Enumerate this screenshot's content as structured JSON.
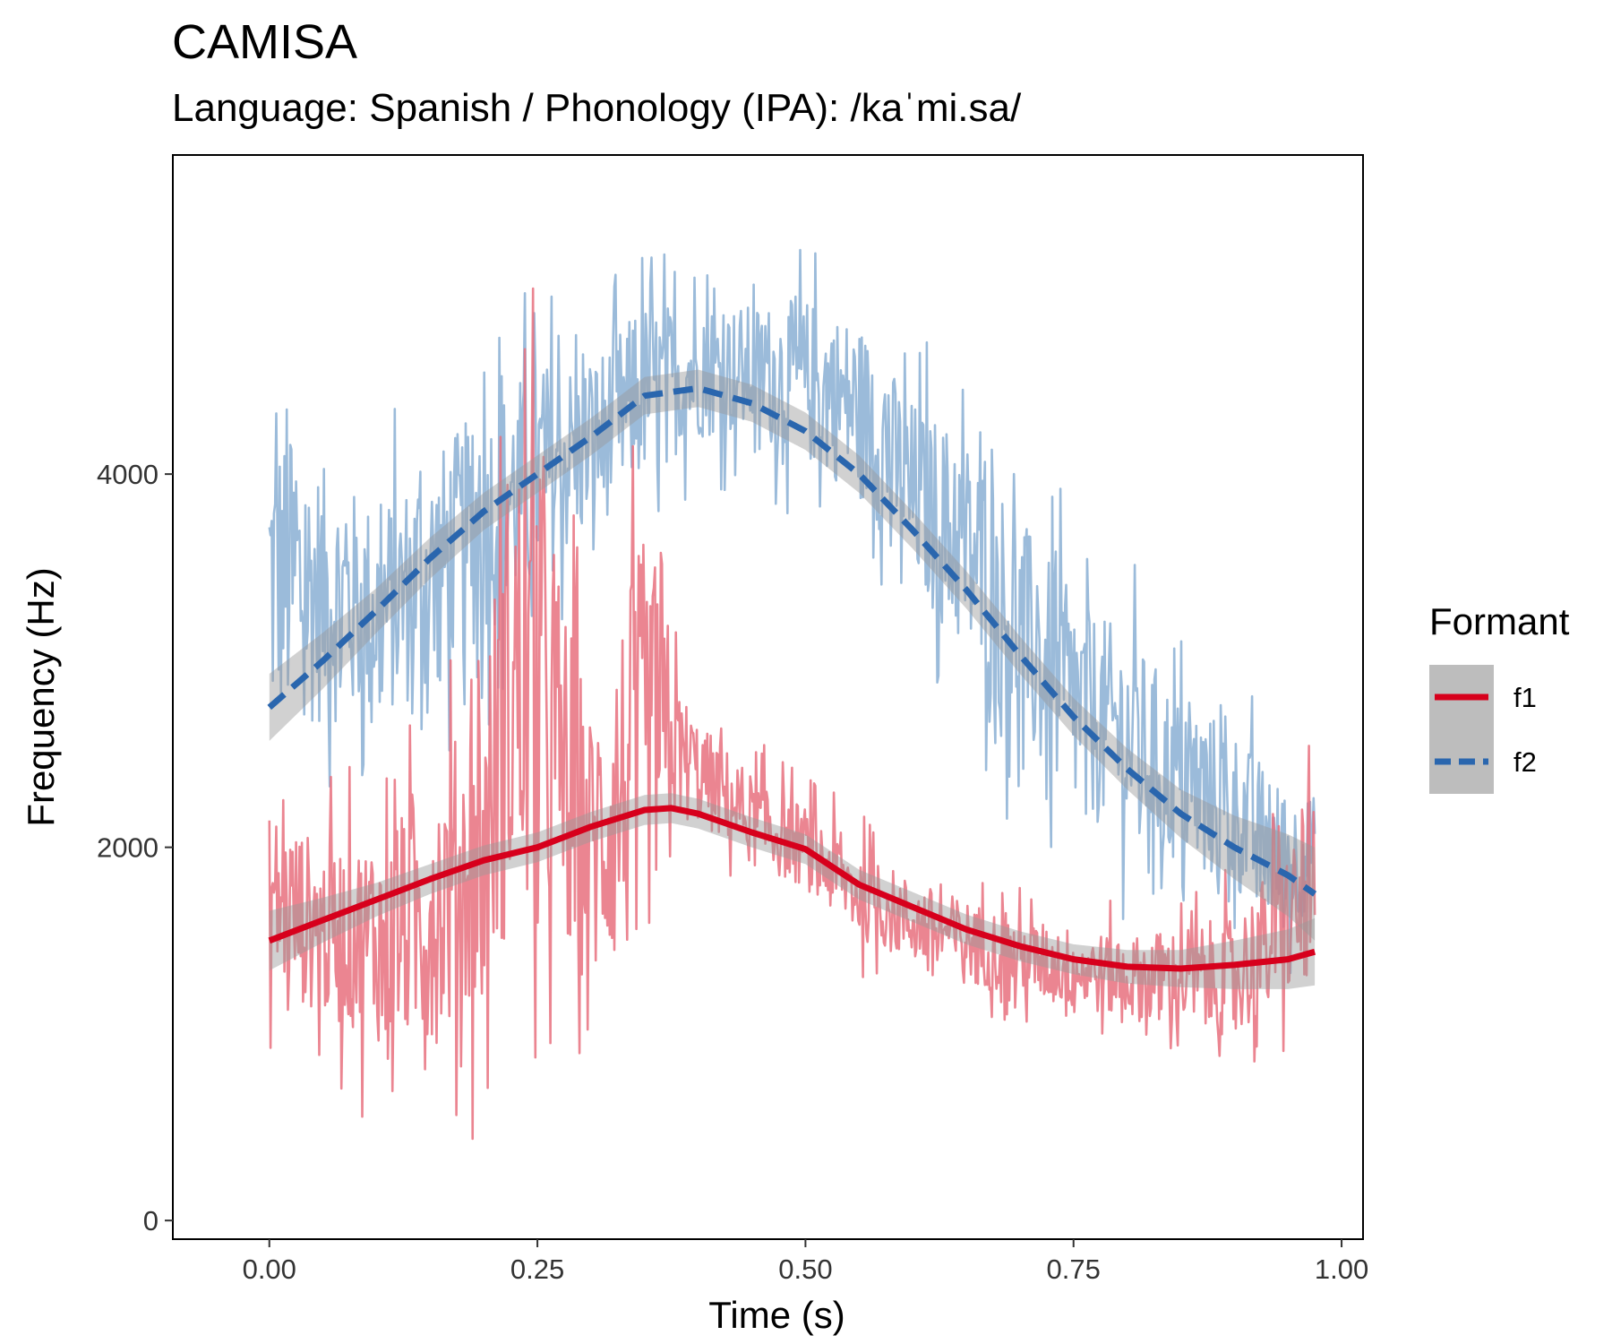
{
  "chart_data": {
    "type": "line",
    "title": "CAMISA",
    "subtitle": "Language: Spanish / Phonology (IPA): /kaˈmi.sa/",
    "xlabel": "Time (s)",
    "ylabel": "Frequency (Hz)",
    "xlim": [
      -0.09,
      1.02
    ],
    "ylim": [
      -100,
      5710
    ],
    "x_ticks": [
      "0.00",
      "0.25",
      "0.50",
      "0.75",
      "1.00"
    ],
    "y_ticks": [
      "0",
      "2000",
      "4000"
    ],
    "grid": false,
    "legend": {
      "title": "Formant",
      "position": "right"
    },
    "series": [
      {
        "name": "f1",
        "raw_color": "#E8707E",
        "smooth_color": "#D7001C",
        "line_style": "solid",
        "raw_envelope": {
          "x": [
            0.0,
            0.05,
            0.1,
            0.15,
            0.2,
            0.225,
            0.25,
            0.3,
            0.35,
            0.375,
            0.4,
            0.45,
            0.5,
            0.55,
            0.6,
            0.7,
            0.8,
            0.9,
            0.975
          ],
          "low": [
            900,
            700,
            500,
            350,
            450,
            500,
            600,
            650,
            500,
            1800,
            1900,
            1700,
            1600,
            1300,
            1200,
            1000,
            900,
            700,
            900
          ],
          "high": [
            2600,
            2400,
            2500,
            2900,
            3600,
            5300,
            5000,
            3300,
            4600,
            3300,
            2900,
            2600,
            2400,
            2200,
            2000,
            1800,
            1700,
            1900,
            2600
          ]
        },
        "smooth": {
          "x": [
            0.0,
            0.05,
            0.1,
            0.15,
            0.2,
            0.25,
            0.3,
            0.35,
            0.375,
            0.4,
            0.45,
            0.5,
            0.55,
            0.6,
            0.65,
            0.7,
            0.75,
            0.8,
            0.85,
            0.9,
            0.95,
            0.975
          ],
          "y": [
            1500,
            1610,
            1720,
            1830,
            1930,
            2000,
            2110,
            2200,
            2210,
            2180,
            2080,
            1990,
            1800,
            1680,
            1560,
            1470,
            1400,
            1360,
            1350,
            1370,
            1400,
            1440
          ],
          "band": [
            160,
            120,
            90,
            80,
            80,
            80,
            80,
            80,
            80,
            80,
            80,
            80,
            80,
            80,
            80,
            80,
            80,
            90,
            100,
            130,
            160,
            180
          ]
        }
      },
      {
        "name": "f2",
        "raw_color": "#8AAFD4",
        "smooth_color": "#2A66AE",
        "line_style": "dashed",
        "raw_envelope": {
          "x": [
            0.0,
            0.05,
            0.1,
            0.15,
            0.2,
            0.25,
            0.3,
            0.35,
            0.4,
            0.45,
            0.5,
            0.55,
            0.6,
            0.65,
            0.7,
            0.75,
            0.8,
            0.85,
            0.9,
            0.95,
            0.975
          ],
          "low": [
            1900,
            2100,
            2200,
            2300,
            2600,
            2900,
            3300,
            3600,
            3900,
            3900,
            3700,
            3500,
            3000,
            2500,
            2000,
            1700,
            1600,
            1500,
            1400,
            1200,
            1500
          ],
          "high": [
            5000,
            4600,
            4300,
            4600,
            4900,
            5100,
            5000,
            5300,
            5200,
            5200,
            5300,
            5200,
            4800,
            4700,
            4300,
            3800,
            3600,
            3200,
            3000,
            2600,
            2500
          ]
        },
        "smooth": {
          "x": [
            0.0,
            0.05,
            0.1,
            0.15,
            0.2,
            0.25,
            0.3,
            0.35,
            0.4,
            0.45,
            0.5,
            0.55,
            0.6,
            0.65,
            0.7,
            0.75,
            0.8,
            0.85,
            0.9,
            0.95,
            0.975
          ],
          "y": [
            2750,
            3000,
            3270,
            3550,
            3800,
            4000,
            4200,
            4420,
            4460,
            4380,
            4230,
            4000,
            3700,
            3380,
            3030,
            2700,
            2420,
            2180,
            2000,
            1850,
            1750
          ],
          "band": [
            180,
            150,
            120,
            110,
            100,
            100,
            100,
            100,
            100,
            100,
            100,
            100,
            100,
            100,
            100,
            100,
            110,
            130,
            170,
            220,
            250
          ]
        }
      }
    ]
  }
}
